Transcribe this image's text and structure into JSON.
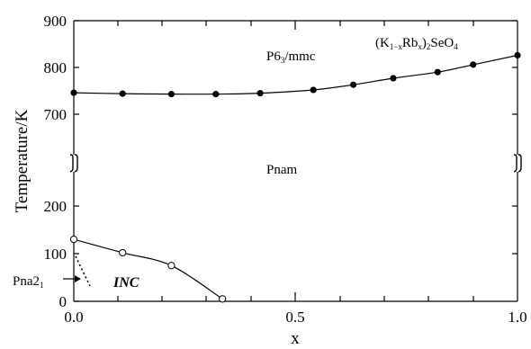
{
  "chart_data": {
    "type": "scatter",
    "xlabel": "x",
    "ylabel": "Temperature/K",
    "xlim": [
      0,
      1
    ],
    "x_ticks": [
      "0.0",
      "0.5",
      "1.0"
    ],
    "y_ticks_upper": [
      "700",
      "800",
      "900"
    ],
    "y_ticks_lower": [
      "0",
      "100",
      "200"
    ],
    "axis_break": "y between 250 and 700",
    "series": [
      {
        "marker": "filled-circle",
        "x": [
          0.0,
          0.11,
          0.22,
          0.32,
          0.42,
          0.54,
          0.63,
          0.72,
          0.82,
          0.9,
          1.0
        ],
        "y": [
          746,
          744,
          743,
          743,
          745,
          752,
          763,
          777,
          790,
          806,
          826
        ]
      },
      {
        "marker": "open-circle",
        "x": [
          0.0,
          0.11,
          0.22,
          0.335
        ],
        "y": [
          130,
          102,
          75,
          5
        ]
      }
    ],
    "labels": {
      "upper_phase_main": "P6",
      "upper_phase_sub": "3",
      "upper_phase_rest": "/mmc",
      "formula_open": "(K",
      "formula_sub1": "1−x",
      "formula_rb": "Rb",
      "formula_sub2": "x",
      "formula_close": ")",
      "formula_sub3": "2",
      "formula_seo": "SeO",
      "formula_sub4": "4",
      "middle_phase": "Pnam",
      "inc_phase": "INC",
      "pna_main": "Pna2",
      "pna_sub": "1"
    }
  }
}
